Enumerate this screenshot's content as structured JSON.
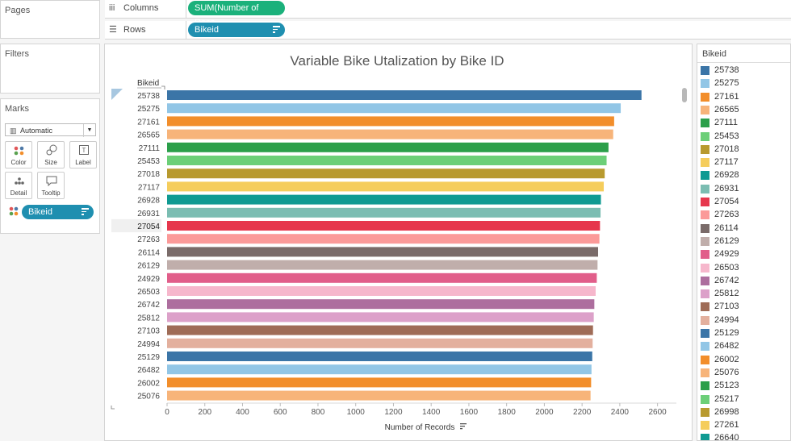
{
  "pages_panel": {
    "title": "Pages"
  },
  "filters_panel": {
    "title": "Filters"
  },
  "marks_panel": {
    "title": "Marks",
    "mark_type": "Automatic",
    "buttons": {
      "color": "Color",
      "size": "Size",
      "label": "Label",
      "detail": "Detail",
      "tooltip": "Tooltip"
    },
    "pill": "Bikeid"
  },
  "shelves": {
    "columns_label": "Columns",
    "columns_pill": "SUM(Number of Reco..",
    "rows_label": "Rows",
    "rows_pill": "Bikeid"
  },
  "chart_data": {
    "type": "bar",
    "orientation": "horizontal",
    "title": "Variable Bike Utalization by Bike ID",
    "row_header": "Bikeid",
    "xlabel": "Number of Records",
    "xlim": [
      0,
      2700
    ],
    "xticks": [
      0,
      200,
      400,
      600,
      800,
      1000,
      1200,
      1400,
      1600,
      1800,
      2000,
      2200,
      2400,
      2600
    ],
    "categories": [
      "25738",
      "25275",
      "27161",
      "26565",
      "27111",
      "25453",
      "27018",
      "27117",
      "26928",
      "26931",
      "27054",
      "27263",
      "26114",
      "26129",
      "24929",
      "26503",
      "26742",
      "25812",
      "27103",
      "24994",
      "25129",
      "26482",
      "26002",
      "25076"
    ],
    "values": [
      2515,
      2405,
      2370,
      2365,
      2340,
      2330,
      2320,
      2315,
      2300,
      2298,
      2295,
      2292,
      2285,
      2282,
      2278,
      2272,
      2265,
      2262,
      2258,
      2256,
      2254,
      2250,
      2248,
      2245
    ],
    "colors": [
      "#3b75a7",
      "#92c6e6",
      "#f28e2b",
      "#f7b47a",
      "#2b9f4a",
      "#6ccf78",
      "#b89a2f",
      "#f5cd5c",
      "#0f9a92",
      "#7bbdb2",
      "#e6374d",
      "#fb9a99",
      "#7a6b69",
      "#c0aeab",
      "#e15e8a",
      "#f6b7cc",
      "#ad6e9e",
      "#dca1c9",
      "#9f6c57",
      "#e3b09e",
      "#3b75a7",
      "#92c6e6",
      "#f28e2b",
      "#f7b47a"
    ],
    "grid": false,
    "highlighted_row": "27054"
  },
  "legend": {
    "title": "Bikeid",
    "items": [
      {
        "label": "25738",
        "color": "#3b75a7"
      },
      {
        "label": "25275",
        "color": "#92c6e6"
      },
      {
        "label": "27161",
        "color": "#f28e2b"
      },
      {
        "label": "26565",
        "color": "#f7b47a"
      },
      {
        "label": "27111",
        "color": "#2b9f4a"
      },
      {
        "label": "25453",
        "color": "#6ccf78"
      },
      {
        "label": "27018",
        "color": "#b89a2f"
      },
      {
        "label": "27117",
        "color": "#f5cd5c"
      },
      {
        "label": "26928",
        "color": "#0f9a92"
      },
      {
        "label": "26931",
        "color": "#7bbdb2"
      },
      {
        "label": "27054",
        "color": "#e6374d"
      },
      {
        "label": "27263",
        "color": "#fb9a99"
      },
      {
        "label": "26114",
        "color": "#7a6b69"
      },
      {
        "label": "26129",
        "color": "#c0aeab"
      },
      {
        "label": "24929",
        "color": "#e15e8a"
      },
      {
        "label": "26503",
        "color": "#f6b7cc"
      },
      {
        "label": "26742",
        "color": "#ad6e9e"
      },
      {
        "label": "25812",
        "color": "#dca1c9"
      },
      {
        "label": "27103",
        "color": "#9f6c57"
      },
      {
        "label": "24994",
        "color": "#e3b09e"
      },
      {
        "label": "25129",
        "color": "#3b75a7"
      },
      {
        "label": "26482",
        "color": "#92c6e6"
      },
      {
        "label": "26002",
        "color": "#f28e2b"
      },
      {
        "label": "25076",
        "color": "#f7b47a"
      },
      {
        "label": "25123",
        "color": "#2b9f4a"
      },
      {
        "label": "25217",
        "color": "#6ccf78"
      },
      {
        "label": "26998",
        "color": "#b89a2f"
      },
      {
        "label": "27261",
        "color": "#f5cd5c"
      },
      {
        "label": "26640",
        "color": "#0f9a92"
      }
    ]
  }
}
